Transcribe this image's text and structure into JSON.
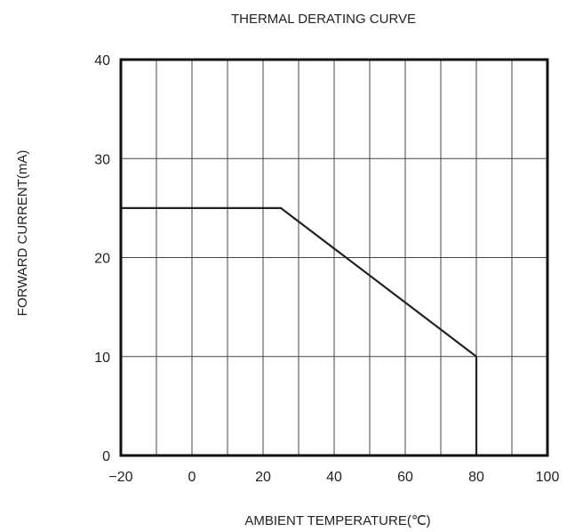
{
  "chart_data": {
    "type": "line",
    "title": "THERMAL DERATING CURVE",
    "xlabel": "AMBIENT TEMPERATURE(℃)",
    "ylabel": "FORWARD CURRENT(mA)",
    "xlim": [
      -20,
      100
    ],
    "ylim": [
      0,
      40
    ],
    "x_ticks": [
      -20,
      0,
      20,
      40,
      60,
      80,
      100
    ],
    "x_tick_labels": [
      "−20",
      "0",
      "20",
      "40",
      "60",
      "80",
      "100"
    ],
    "y_ticks": [
      0,
      10,
      20,
      30,
      40
    ],
    "y_tick_labels": [
      "0",
      "10",
      "20",
      "30",
      "40"
    ],
    "grid": true,
    "x_minor_grid_step": 10,
    "series": [
      {
        "points": [
          {
            "x": -20,
            "y": 25
          },
          {
            "x": 25,
            "y": 25
          },
          {
            "x": 80,
            "y": 10
          },
          {
            "x": 80,
            "y": 0
          }
        ]
      }
    ]
  },
  "colors": {
    "line": "#222222",
    "grid": "#444444",
    "frame": "#111111",
    "text": "#222222"
  }
}
